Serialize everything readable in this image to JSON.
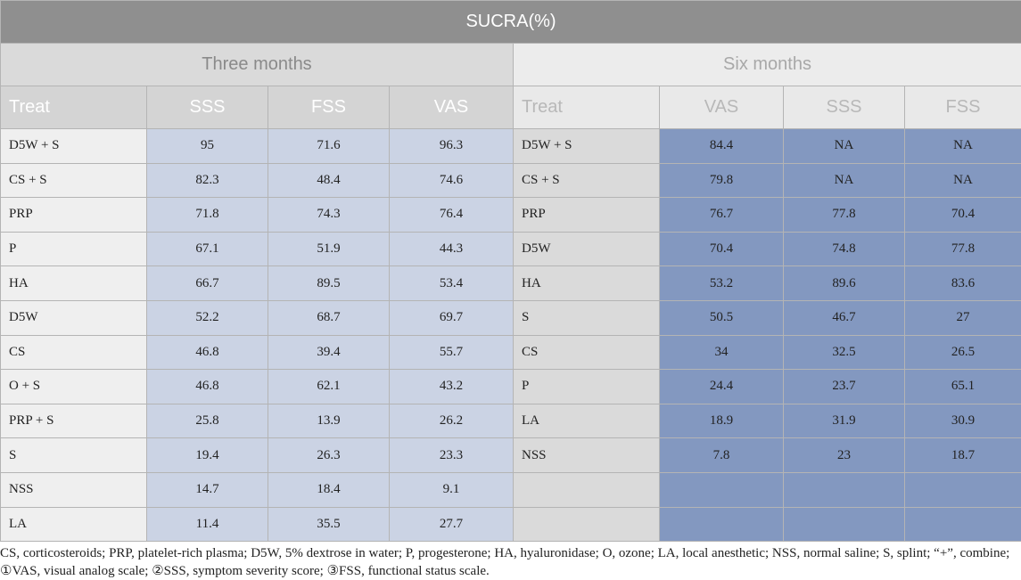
{
  "title": "SUCRA(%)",
  "three_months": {
    "label": "Three months",
    "headers": [
      "Treat",
      "SSS",
      "FSS",
      "VAS"
    ],
    "rows": [
      {
        "treat": "D5W + S",
        "v": [
          "95",
          "71.6",
          "96.3"
        ]
      },
      {
        "treat": "CS + S",
        "v": [
          "82.3",
          "48.4",
          "74.6"
        ]
      },
      {
        "treat": "PRP",
        "v": [
          "71.8",
          "74.3",
          "76.4"
        ]
      },
      {
        "treat": "P",
        "v": [
          "67.1",
          "51.9",
          "44.3"
        ]
      },
      {
        "treat": "HA",
        "v": [
          "66.7",
          "89.5",
          "53.4"
        ]
      },
      {
        "treat": "D5W",
        "v": [
          "52.2",
          "68.7",
          "69.7"
        ]
      },
      {
        "treat": "CS",
        "v": [
          "46.8",
          "39.4",
          "55.7"
        ]
      },
      {
        "treat": "O + S",
        "v": [
          "46.8",
          "62.1",
          "43.2"
        ]
      },
      {
        "treat": "PRP + S",
        "v": [
          "25.8",
          "13.9",
          "26.2"
        ]
      },
      {
        "treat": "S",
        "v": [
          "19.4",
          "26.3",
          "23.3"
        ]
      },
      {
        "treat": "NSS",
        "v": [
          "14.7",
          "18.4",
          "9.1"
        ]
      },
      {
        "treat": "LA",
        "v": [
          "11.4",
          "35.5",
          "27.7"
        ]
      }
    ]
  },
  "six_months": {
    "label": "Six months",
    "headers": [
      "Treat",
      "VAS",
      "SSS",
      "FSS"
    ],
    "rows": [
      {
        "treat": "D5W + S",
        "v": [
          "84.4",
          "NA",
          "NA"
        ]
      },
      {
        "treat": "CS + S",
        "v": [
          "79.8",
          "NA",
          "NA"
        ]
      },
      {
        "treat": "PRP",
        "v": [
          "76.7",
          "77.8",
          "70.4"
        ]
      },
      {
        "treat": "D5W",
        "v": [
          "70.4",
          "74.8",
          "77.8"
        ]
      },
      {
        "treat": "HA",
        "v": [
          "53.2",
          "89.6",
          "83.6"
        ]
      },
      {
        "treat": "S",
        "v": [
          "50.5",
          "46.7",
          "27"
        ]
      },
      {
        "treat": "CS",
        "v": [
          "34",
          "32.5",
          "26.5"
        ]
      },
      {
        "treat": "P",
        "v": [
          "24.4",
          "23.7",
          "65.1"
        ]
      },
      {
        "treat": "LA",
        "v": [
          "18.9",
          "31.9",
          "30.9"
        ]
      },
      {
        "treat": "NSS",
        "v": [
          "7.8",
          "23",
          "18.7"
        ]
      },
      {
        "treat": "",
        "v": [
          "",
          "",
          ""
        ]
      },
      {
        "treat": "",
        "v": [
          "",
          "",
          ""
        ]
      }
    ]
  },
  "footnote": {
    "line1": "CS, corticosteroids; PRP, platelet-rich plasma; D5W, 5% dextrose in water; P, progesterone; HA, hyaluronidase; O, ozone; LA, local anesthetic; NSS, normal saline; S, splint; “+”, combine;",
    "line2": "①VAS, visual analog scale; ②SSS, symptom severity score; ③FSS, functional status scale."
  }
}
